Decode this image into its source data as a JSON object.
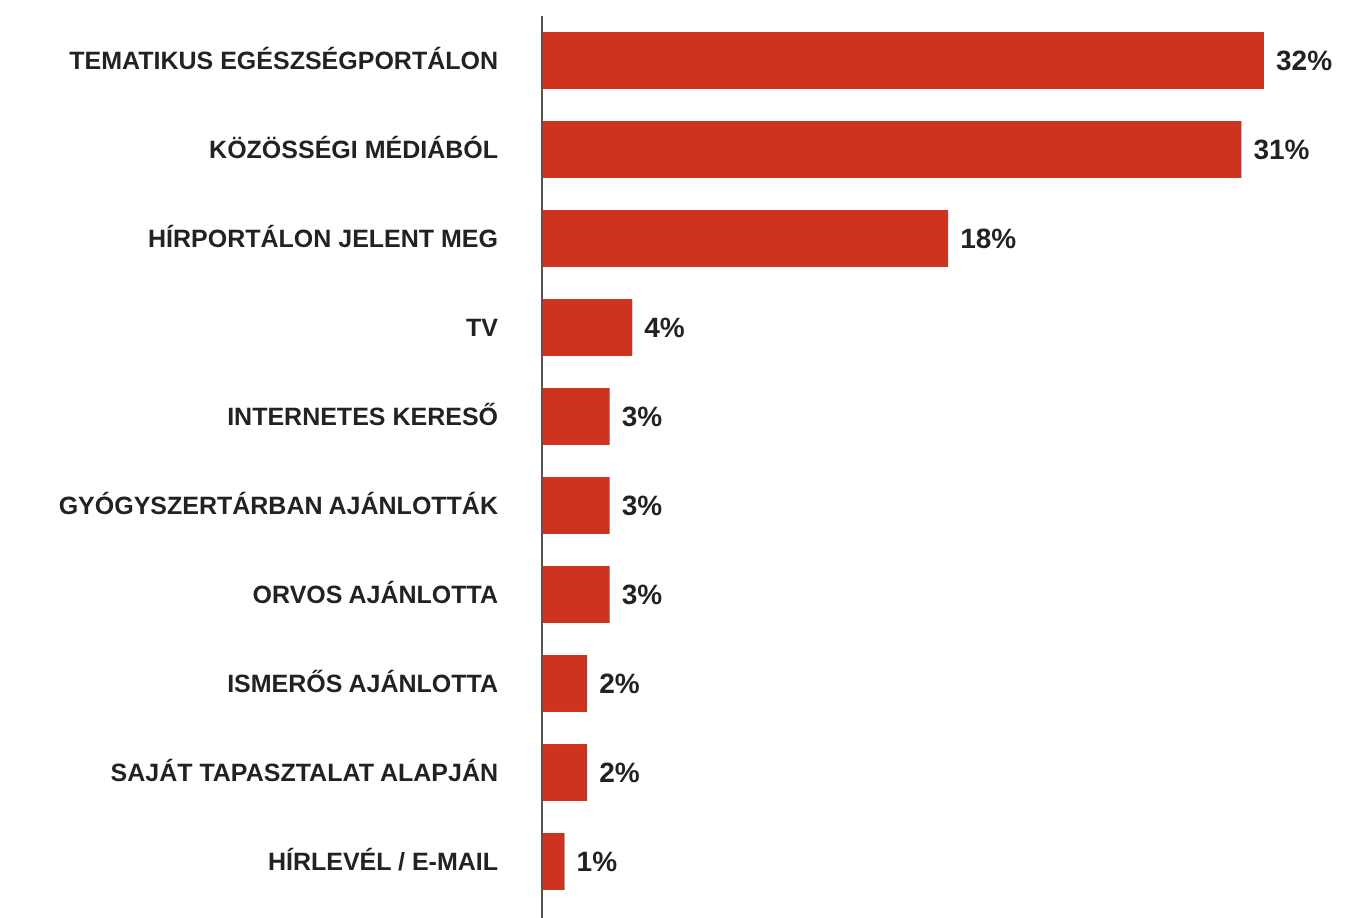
{
  "chart_data": {
    "type": "bar",
    "orientation": "horizontal",
    "categories": [
      "TEMATIKUS EGÉSZSÉGPORTÁLON",
      "KÖZÖSSÉGI MÉDIÁBÓL",
      "HÍRPORTÁLON JELENT MEG",
      "TV",
      "INTERNETES KERESŐ",
      "GYÓGYSZERTÁRBAN AJÁNLOTTÁK",
      "ORVOS AJÁNLOTTA",
      "ISMERŐS AJÁNLOTTA",
      "SAJÁT TAPASZTALAT ALAPJÁN",
      "HÍRLEVÉL / E-MAIL"
    ],
    "values": [
      32,
      31,
      18,
      4,
      3,
      3,
      3,
      2,
      2,
      1
    ],
    "value_labels": [
      "32%",
      "31%",
      "18%",
      "4%",
      "3%",
      "3%",
      "3%",
      "2%",
      "2%",
      "1%"
    ],
    "color": "#ce3320"
  }
}
